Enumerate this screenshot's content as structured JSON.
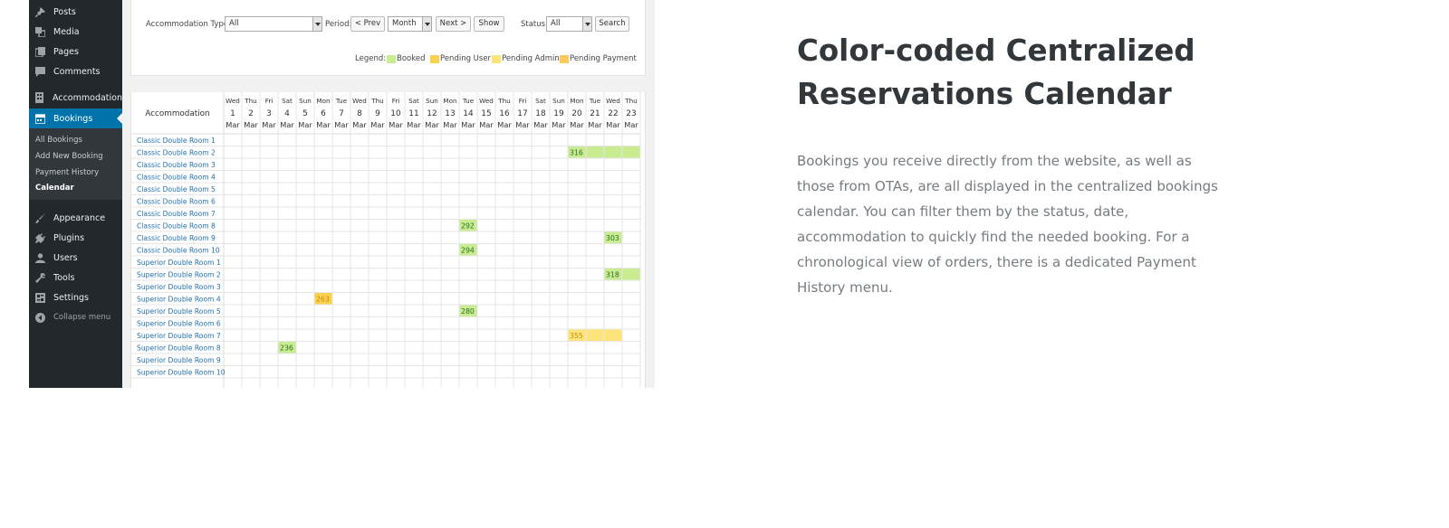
{
  "sidebar": {
    "items": [
      {
        "label": "Posts",
        "icon": "pin-icon"
      },
      {
        "label": "Media",
        "icon": "media-icon"
      },
      {
        "label": "Pages",
        "icon": "pages-icon"
      },
      {
        "label": "Comments",
        "icon": "comment-icon"
      },
      {
        "label": "Accommodation",
        "icon": "building-icon"
      },
      {
        "label": "Bookings",
        "icon": "calendar-icon",
        "active": true
      },
      {
        "label": "Appearance",
        "icon": "brush-icon"
      },
      {
        "label": "Plugins",
        "icon": "plug-icon"
      },
      {
        "label": "Users",
        "icon": "user-icon"
      },
      {
        "label": "Tools",
        "icon": "wrench-icon"
      },
      {
        "label": "Settings",
        "icon": "settings-icon"
      }
    ],
    "submenu": [
      "All Bookings",
      "Add New Booking",
      "Payment History",
      "Calendar"
    ],
    "submenu_current": "Calendar",
    "collapse_label": "Collapse menu"
  },
  "filters": {
    "accommodation_type_label": "Accommodation Type:",
    "accommodation_type_value": "All",
    "period_label": "Period:",
    "prev_label": "< Prev",
    "period_value": "Month",
    "next_label": "Next >",
    "show_label": "Show",
    "status_label": "Status:",
    "status_value": "All",
    "search_label": "Search"
  },
  "legend": {
    "label": "Legend:",
    "items": [
      {
        "label": "Booked",
        "color": "#c8ec8f"
      },
      {
        "label": "Pending User",
        "color": "#fbd24e"
      },
      {
        "label": "Pending Admin",
        "color": "#fde47a"
      },
      {
        "label": "Pending Payment",
        "color": "#fcc95c"
      }
    ]
  },
  "calendar": {
    "header_label": "Accommodation",
    "days": [
      {
        "dow": "Wed",
        "day": "1",
        "month": "Mar"
      },
      {
        "dow": "Thu",
        "day": "2",
        "month": "Mar"
      },
      {
        "dow": "Fri",
        "day": "3",
        "month": "Mar"
      },
      {
        "dow": "Sat",
        "day": "4",
        "month": "Mar"
      },
      {
        "dow": "Sun",
        "day": "5",
        "month": "Mar"
      },
      {
        "dow": "Mon",
        "day": "6",
        "month": "Mar"
      },
      {
        "dow": "Tue",
        "day": "7",
        "month": "Mar"
      },
      {
        "dow": "Wed",
        "day": "8",
        "month": "Mar"
      },
      {
        "dow": "Thu",
        "day": "9",
        "month": "Mar"
      },
      {
        "dow": "Fri",
        "day": "10",
        "month": "Mar"
      },
      {
        "dow": "Sat",
        "day": "11",
        "month": "Mar"
      },
      {
        "dow": "Sun",
        "day": "12",
        "month": "Mar"
      },
      {
        "dow": "Mon",
        "day": "13",
        "month": "Mar"
      },
      {
        "dow": "Tue",
        "day": "14",
        "month": "Mar"
      },
      {
        "dow": "Wed",
        "day": "15",
        "month": "Mar"
      },
      {
        "dow": "Thu",
        "day": "16",
        "month": "Mar"
      },
      {
        "dow": "Fri",
        "day": "17",
        "month": "Mar"
      },
      {
        "dow": "Sat",
        "day": "18",
        "month": "Mar"
      },
      {
        "dow": "Sun",
        "day": "19",
        "month": "Mar"
      },
      {
        "dow": "Mon",
        "day": "20",
        "month": "Mar"
      },
      {
        "dow": "Tue",
        "day": "21",
        "month": "Mar"
      },
      {
        "dow": "Wed",
        "day": "22",
        "month": "Mar"
      },
      {
        "dow": "Thu",
        "day": "23",
        "month": "Mar"
      }
    ],
    "rooms": [
      "Classic Double Room 1",
      "Classic Double Room 2",
      "Classic Double Room 3",
      "Classic Double Room 4",
      "Classic Double Room 5",
      "Classic Double Room 6",
      "Classic Double Room 7",
      "Classic Double Room 8",
      "Classic Double Room 9",
      "Classic Double Room 10",
      "Superior Double Room 1",
      "Superior Double Room 2",
      "Superior Double Room 3",
      "Superior Double Room 4",
      "Superior Double Room 5",
      "Superior Double Room 6",
      "Superior Double Room 7",
      "Superior Double Room 8",
      "Superior Double Room 9",
      "Superior Double Room 10"
    ],
    "bookings": [
      {
        "room": 1,
        "start": 20,
        "end": 23,
        "id": "316",
        "status": "booked"
      },
      {
        "room": 7,
        "start": 14,
        "end": 14,
        "id": "292",
        "status": "booked"
      },
      {
        "room": 8,
        "start": 22,
        "end": 22,
        "id": "303",
        "status": "booked"
      },
      {
        "room": 9,
        "start": 14,
        "end": 14,
        "id": "294",
        "status": "booked"
      },
      {
        "room": 11,
        "start": 22,
        "end": 23,
        "id": "318",
        "status": "booked"
      },
      {
        "room": 13,
        "start": 6,
        "end": 6,
        "id": "263",
        "status": "pending-user"
      },
      {
        "room": 14,
        "start": 14,
        "end": 14,
        "id": "280",
        "status": "booked"
      },
      {
        "room": 16,
        "start": 20,
        "end": 22,
        "id": "355",
        "status": "pending-admin"
      },
      {
        "room": 17,
        "start": 4,
        "end": 4,
        "id": "236",
        "status": "booked"
      }
    ],
    "status_colors": {
      "booked": "#c8ec8f",
      "pending-user": "#fbd24e",
      "pending-admin": "#fde47a",
      "pending-payment": "#fcc95c"
    }
  },
  "headline": "Color-coded Centralized Reservations Calendar",
  "description": "Bookings you receive directly from the website, as well as those from OTAs, are all displayed in the centralized bookings calendar. You can filter them by the status, date, accommodation to quickly find the needed booking. For a chronological view of orders, there is a dedicated Payment History menu.",
  "accent": "#0073aa"
}
